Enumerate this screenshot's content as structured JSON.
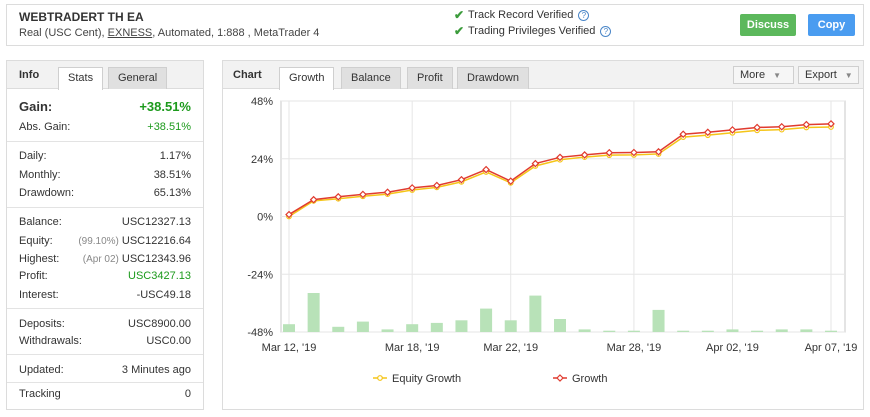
{
  "header": {
    "title": "WEBTRADERT TH EA",
    "sub_prefix": "Real (USC Cent), ",
    "broker": "EXNESS",
    "sub_suffix": ", Automated, 1:888 , MetaTrader 4",
    "verified": [
      "Track Record Verified",
      "Trading Privileges Verified"
    ],
    "discuss_label": "Discuss",
    "copy_label": "Copy"
  },
  "info": {
    "heading": "Info",
    "tabs": [
      "Stats",
      "General"
    ],
    "gain_label": "Gain:",
    "gain_value": "+38.51%",
    "abs_gain_label": "Abs. Gain:",
    "abs_gain_value": "+38.51%",
    "daily_label": "Daily:",
    "daily_value": "1.17%",
    "monthly_label": "Monthly:",
    "monthly_value": "38.51%",
    "drawdown_label": "Drawdown:",
    "drawdown_value": "65.13%",
    "balance_label": "Balance:",
    "balance_value": "USC12327.13",
    "equity_label": "Equity:",
    "equity_pct": "(99.10%)",
    "equity_value": "USC12216.64",
    "highest_label": "Highest:",
    "highest_date": "(Apr 02)",
    "highest_value": "USC12343.96",
    "profit_label": "Profit:",
    "profit_value": "USC3427.13",
    "interest_label": "Interest:",
    "interest_value": "-USC49.18",
    "deposits_label": "Deposits:",
    "deposits_value": "USC8900.00",
    "withdrawals_label": "Withdrawals:",
    "withdrawals_value": "USC0.00",
    "updated_label": "Updated:",
    "updated_value": "3 Minutes ago",
    "tracking_label": "Tracking",
    "tracking_value": "0"
  },
  "chart_panel": {
    "heading": "Chart",
    "tabs": [
      "Growth",
      "Balance",
      "Profit",
      "Drawdown"
    ],
    "more_label": "More",
    "export_label": "Export"
  },
  "colors": {
    "growth": "#e03b2f",
    "equity_growth": "#f5c518",
    "bars": "#b8e2b8",
    "positive": "#1c9a1c",
    "discuss": "#5cb85c",
    "copy": "#4a9cf0"
  },
  "chart_data": {
    "type": "line",
    "x_tick_labels": [
      "Mar 12, '19",
      "Mar 18, '19",
      "Mar 22, '19",
      "Mar 28, '19",
      "Apr 02, '19",
      "Apr 07, '19"
    ],
    "x_tick_index": [
      0,
      5,
      9,
      14,
      18,
      22
    ],
    "y_tick_labels": [
      "48%",
      "24%",
      "0%",
      "-24%",
      "-48%"
    ],
    "y_ticks": [
      48,
      24,
      0,
      -24,
      -48
    ],
    "ylim": [
      -48,
      48
    ],
    "series": [
      {
        "name": "Equity Growth",
        "values": [
          0,
          6.5,
          7.4,
          8.4,
          9.3,
          11.0,
          12.1,
          14.4,
          18.5,
          14.0,
          21.0,
          23.6,
          24.7,
          25.5,
          25.6,
          26.0,
          33.0,
          33.8,
          34.8,
          35.8,
          36.1,
          37.0,
          37.2
        ]
      },
      {
        "name": "Growth",
        "values": [
          0.8,
          7.0,
          8.2,
          9.2,
          10.1,
          11.9,
          12.9,
          15.3,
          19.5,
          14.7,
          22.0,
          24.6,
          25.6,
          26.5,
          26.6,
          26.9,
          34.2,
          35.0,
          36.0,
          37.0,
          37.3,
          38.2,
          38.5
        ]
      }
    ],
    "bars_note": "daily relative volume bars at bottom of chart",
    "bar_values": [
      6,
      30,
      4,
      8,
      2,
      6,
      7,
      9,
      18,
      9,
      28,
      10,
      2,
      1,
      1,
      17,
      1,
      1,
      2,
      1,
      2,
      2,
      1
    ],
    "legend": [
      "Equity Growth",
      "Growth"
    ],
    "legend_position": "bottom",
    "grid": true
  }
}
